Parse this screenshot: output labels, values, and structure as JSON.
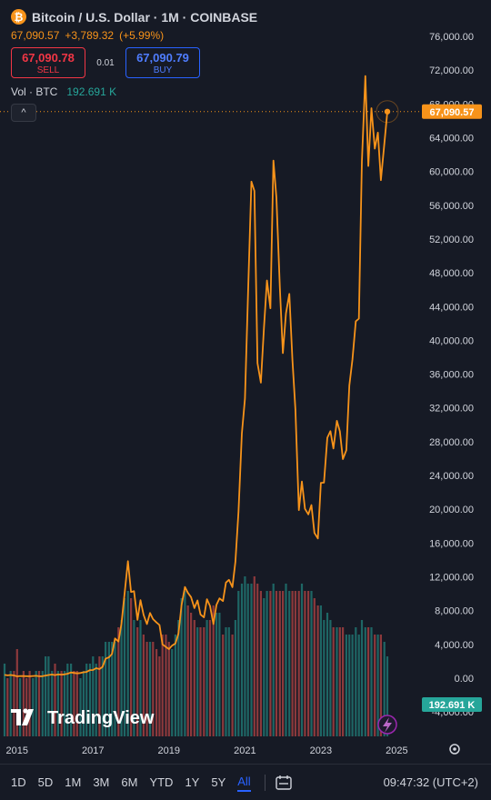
{
  "header": {
    "icon_letter": "₿",
    "symbol_title": "Bitcoin / U.S. Dollar · 1M · COINBASE",
    "last_price": "67,090.57",
    "change": "+3,789.32",
    "change_pct": "(+5.99%)",
    "sell_price": "67,090.78",
    "sell_label": "SELL",
    "spread": "0.01",
    "buy_price": "67,090.79",
    "buy_label": "BUY",
    "volume_label": "Vol · BTC",
    "volume_value": "192.691 K",
    "collapse_glyph": "^"
  },
  "colors": {
    "background": "#161a25",
    "line": "#f7931a",
    "vol_up": "#26a69a",
    "vol_down": "#ef5350",
    "sell": "#f23645",
    "buy": "#2962ff"
  },
  "axis": {
    "price_labels": [
      "76,000.00",
      "72,000.00",
      "68,000.00",
      "64,000.00",
      "60,000.00",
      "56,000.00",
      "52,000.00",
      "48,000.00",
      "44,000.00",
      "40,000.00",
      "36,000.00",
      "32,000.00",
      "28,000.00",
      "24,000.00",
      "20,000.00",
      "16,000.00",
      "12,000.00",
      "8,000.00",
      "4,000.00",
      "0.00",
      "-4,000.00"
    ],
    "price_badge": "67,090.57",
    "volume_badge": "192.691 K",
    "time_labels": [
      "2015",
      "2017",
      "2019",
      "2021",
      "2023",
      "2025"
    ],
    "settings_icon": "gear-icon"
  },
  "watermark": "TradingView",
  "toolbar": {
    "timeframes": [
      "1D",
      "5D",
      "1M",
      "3M",
      "6M",
      "YTD",
      "1Y",
      "5Y",
      "All"
    ],
    "active": "All",
    "range_icon": "date-range-icon",
    "clock": "09:47:32 (UTC+2)"
  },
  "chart_data": {
    "type": "line",
    "title": "Bitcoin / U.S. Dollar · 1M · COINBASE",
    "xlabel": "",
    "ylabel": "",
    "ylim": [
      -5500,
      78000
    ],
    "grid": false,
    "x": [
      2014.67,
      2014.75,
      2014.83,
      2014.92,
      2015.0,
      2015.08,
      2015.17,
      2015.25,
      2015.33,
      2015.42,
      2015.5,
      2015.58,
      2015.67,
      2015.75,
      2015.83,
      2015.92,
      2016.0,
      2016.08,
      2016.17,
      2016.25,
      2016.33,
      2016.42,
      2016.5,
      2016.58,
      2016.67,
      2016.75,
      2016.83,
      2016.92,
      2017.0,
      2017.08,
      2017.17,
      2017.25,
      2017.33,
      2017.42,
      2017.5,
      2017.58,
      2017.67,
      2017.75,
      2017.83,
      2017.92,
      2018.0,
      2018.08,
      2018.17,
      2018.25,
      2018.33,
      2018.42,
      2018.5,
      2018.58,
      2018.67,
      2018.75,
      2018.83,
      2018.92,
      2019.0,
      2019.08,
      2019.17,
      2019.25,
      2019.33,
      2019.42,
      2019.5,
      2019.58,
      2019.67,
      2019.75,
      2019.83,
      2019.92,
      2020.0,
      2020.08,
      2020.17,
      2020.25,
      2020.33,
      2020.42,
      2020.5,
      2020.58,
      2020.67,
      2020.75,
      2020.83,
      2020.92,
      2021.0,
      2021.08,
      2021.17,
      2021.25,
      2021.33,
      2021.42,
      2021.5,
      2021.58,
      2021.67,
      2021.75,
      2021.83,
      2021.92,
      2022.0,
      2022.08,
      2022.17,
      2022.25,
      2022.33,
      2022.42,
      2022.5,
      2022.58,
      2022.67,
      2022.75,
      2022.83,
      2022.92,
      2023.0,
      2023.08,
      2023.17,
      2023.25,
      2023.33,
      2023.42,
      2023.5,
      2023.58,
      2023.67,
      2023.75,
      2023.83,
      2023.92,
      2024.0,
      2024.08,
      2024.17,
      2024.25,
      2024.33,
      2024.42,
      2024.5,
      2024.58,
      2024.67,
      2024.75
    ],
    "series": [
      {
        "values": [
          390,
          338,
          378,
          320,
          217,
          254,
          244,
          236,
          230,
          263,
          284,
          230,
          236,
          314,
          377,
          430,
          368,
          437,
          416,
          448,
          531,
          673,
          624,
          575,
          609,
          700,
          742,
          963,
          970,
          1189,
          1079,
          1350,
          2300,
          2480,
          2875,
          4700,
          4338,
          6468,
          10000,
          13850,
          10200,
          10300,
          6900,
          9240,
          7500,
          6400,
          7720,
          7000,
          6600,
          6300,
          4000,
          3700,
          3450,
          3850,
          4100,
          5300,
          8600,
          10800,
          10100,
          9600,
          8300,
          9200,
          7550,
          7200,
          9350,
          8550,
          6400,
          8700,
          9450,
          9130,
          11330,
          11650,
          10780,
          13800,
          19700,
          28990,
          33100,
          45200,
          58800,
          57700,
          37300,
          35000,
          41500,
          47100,
          43800,
          61300,
          56900,
          46200,
          38500,
          43200,
          45500,
          37700,
          31800,
          19900,
          23300,
          20050,
          19400,
          20500,
          17200,
          16550,
          23130,
          23150,
          28470,
          29250,
          27200,
          30480,
          29230,
          25940,
          27000,
          34650,
          37720,
          42260,
          42580,
          61190,
          71300,
          60650,
          67500,
          62700,
          64600,
          58970,
          63300,
          67090
        ]
      }
    ],
    "volume": [
      10,
      8,
      9,
      9,
      12,
      8,
      9,
      8,
      9,
      8,
      9,
      9,
      9,
      11,
      11,
      9,
      10,
      9,
      9,
      9,
      10,
      10,
      9,
      9,
      8,
      9,
      10,
      10,
      11,
      10,
      11,
      11,
      13,
      13,
      13,
      13,
      15,
      16,
      19,
      20,
      19,
      16,
      15,
      16,
      14,
      13,
      13,
      13,
      12,
      11,
      14,
      14,
      13,
      12,
      14,
      16,
      19,
      20,
      18,
      17,
      16,
      15,
      15,
      15,
      16,
      16,
      18,
      17,
      17,
      14,
      15,
      15,
      14,
      16,
      20,
      21,
      22,
      21,
      21,
      22,
      21,
      20,
      19,
      20,
      20,
      21,
      20,
      20,
      20,
      21,
      20,
      20,
      20,
      20,
      21,
      20,
      20,
      20,
      19,
      18,
      18,
      16,
      17,
      16,
      15,
      15,
      15,
      15,
      14,
      14,
      14,
      15,
      14,
      16,
      15,
      15,
      15,
      14,
      14,
      14,
      13,
      11
    ],
    "volume_series": {
      "name": "Vol · BTC",
      "last": "192.691 K"
    }
  }
}
